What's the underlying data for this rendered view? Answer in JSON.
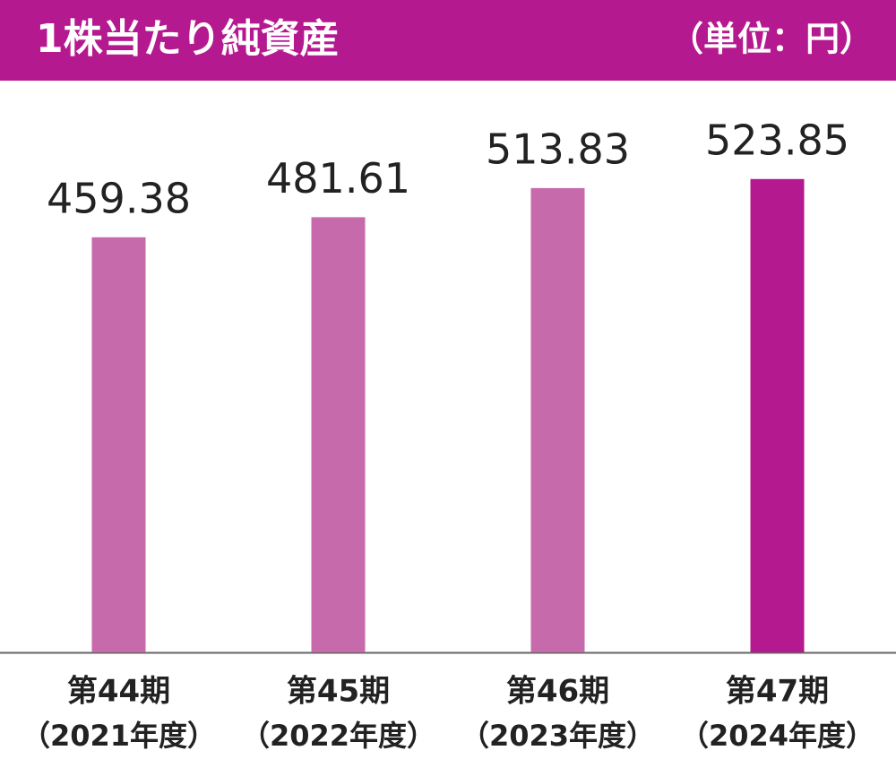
{
  "chart_data": {
    "type": "bar",
    "title": "1株当たり純資産",
    "unit": "（単位：円）",
    "categories": [
      [
        "第44期",
        "（2021年度）"
      ],
      [
        "第45期",
        "（2022年度）"
      ],
      [
        "第46期",
        "（2023年度）"
      ],
      [
        "第47期",
        "（2024年度）"
      ]
    ],
    "values": [
      459.38,
      481.61,
      513.83,
      523.85
    ],
    "colors": [
      "#c76aac",
      "#c76aac",
      "#c76aac",
      "#b5198f"
    ],
    "header_color": "#b5198f",
    "ylim": [
      0,
      600
    ]
  }
}
